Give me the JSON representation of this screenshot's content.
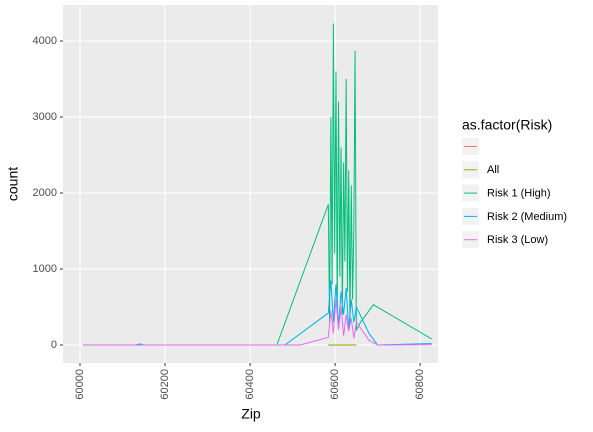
{
  "chart_data": {
    "type": "line",
    "x_label": "Zip",
    "y_label": "count",
    "legend_title": "as.factor(Risk)",
    "legend": "right",
    "grid": true,
    "xlim": [
      59960,
      60842
    ],
    "xticks": [
      60000,
      60200,
      60400,
      60600,
      60800
    ],
    "ylim": [
      -237,
      4474
    ],
    "yticks": [
      0,
      1000,
      2000,
      3000,
      4000
    ],
    "series": [
      {
        "color": "#F8766D",
        "x": [
          60584,
          60650
        ],
        "values": [
          0,
          0
        ]
      },
      {
        "name": "All",
        "color": "#A3A500",
        "x": [
          60584,
          60650
        ],
        "values": [
          0,
          0
        ]
      },
      {
        "name": "Risk 1 (High)",
        "color": "#00BF7D",
        "x": [
          60007,
          60100,
          60200,
          60300,
          60400,
          60463,
          60584,
          60587,
          60590,
          60593,
          60596,
          60599,
          60602,
          60605,
          60608,
          60611,
          60614,
          60617,
          60620,
          60623,
          60626,
          60629,
          60632,
          60635,
          60638,
          60641,
          60644,
          60647,
          60650,
          60660,
          60690,
          60827
        ],
        "values": [
          0,
          0,
          0,
          0,
          0,
          0,
          1850,
          300,
          3000,
          800,
          4230,
          1200,
          3600,
          500,
          3200,
          900,
          2600,
          400,
          2400,
          1100,
          3500,
          700,
          2300,
          300,
          2100,
          600,
          1500,
          3870,
          200,
          300,
          530,
          80
        ]
      },
      {
        "name": "Risk 2 (Medium)",
        "color": "#00B0F6",
        "x": [
          60007,
          60130,
          60140,
          60150,
          60482,
          60584,
          60590,
          60596,
          60602,
          60608,
          60614,
          60620,
          60626,
          60632,
          60638,
          60644,
          60650,
          60680,
          60700,
          60827
        ],
        "values": [
          0,
          0,
          15,
          0,
          0,
          420,
          850,
          300,
          800,
          250,
          700,
          400,
          750,
          200,
          600,
          300,
          500,
          150,
          0,
          20
        ]
      },
      {
        "name": "Risk 3 (Low)",
        "color": "#E76BF3",
        "x": [
          60007,
          60518,
          60584,
          60590,
          60596,
          60602,
          60608,
          60614,
          60620,
          60626,
          60632,
          60638,
          60644,
          60650,
          60680,
          60700,
          60827
        ],
        "values": [
          0,
          0,
          100,
          450,
          150,
          600,
          200,
          500,
          120,
          400,
          180,
          350,
          90,
          300,
          60,
          0,
          5
        ]
      }
    ]
  }
}
